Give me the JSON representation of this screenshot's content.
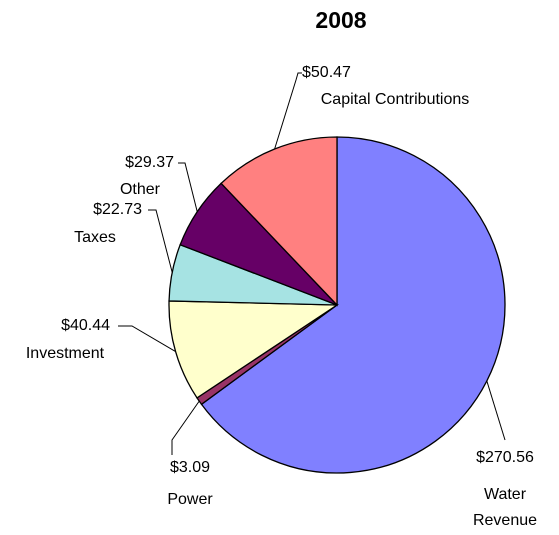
{
  "chart_data": {
    "type": "pie",
    "title": "2008",
    "categories": [
      "Water Revenue",
      "Power",
      "Investment",
      "Taxes",
      "Other",
      "Capital Contributions"
    ],
    "values": [
      270.56,
      3.09,
      40.44,
      22.73,
      29.37,
      50.47
    ],
    "value_labels": [
      "$270.56",
      "$3.09",
      "$40.44",
      "$22.73",
      "$29.37",
      "$50.47"
    ],
    "colors": [
      "#8080ff",
      "#993366",
      "#ffffcc",
      "#a6e3e3",
      "#660066",
      "#ff8080"
    ]
  }
}
